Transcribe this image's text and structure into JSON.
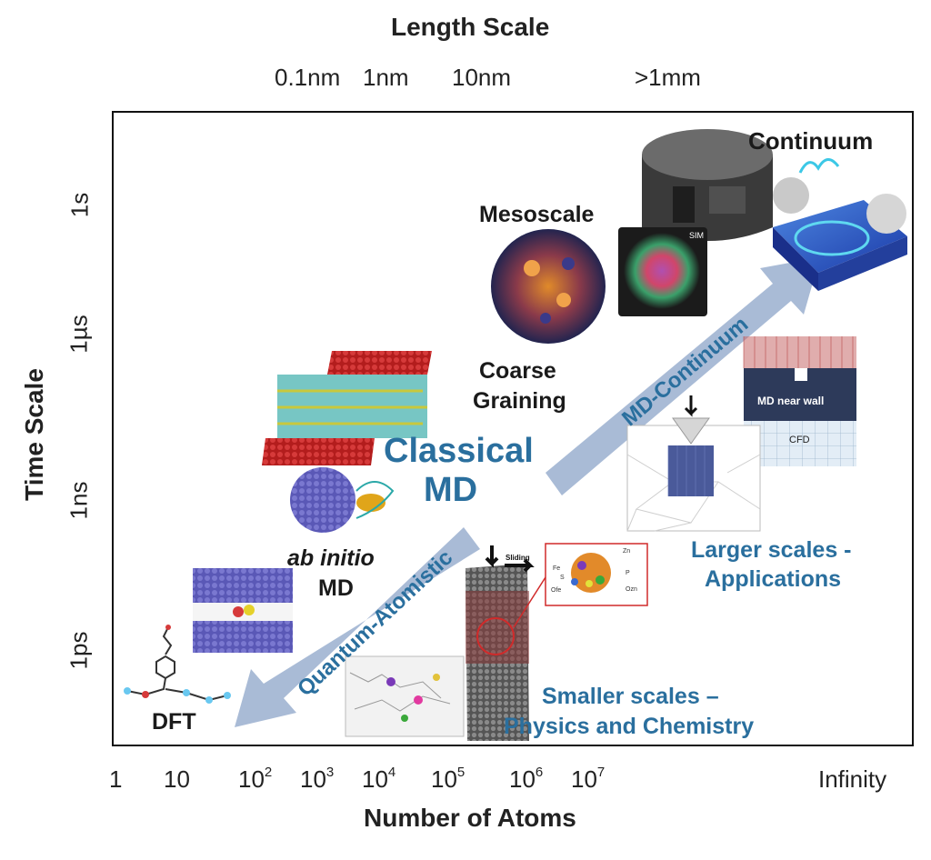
{
  "axes": {
    "top_title": "Length Scale",
    "top_ticks": [
      "0.1nm",
      "1nm",
      "10nm",
      ">1mm"
    ],
    "left_title": "Time Scale",
    "left_ticks": [
      "1s",
      "1µs",
      "1ns",
      "1ps"
    ],
    "bottom_title": "Number of Atoms",
    "bottom_ticks": [
      {
        "base": "1",
        "exp": ""
      },
      {
        "base": "10",
        "exp": ""
      },
      {
        "base": "10",
        "exp": "2"
      },
      {
        "base": "10",
        "exp": "3"
      },
      {
        "base": "10",
        "exp": "4"
      },
      {
        "base": "10",
        "exp": "5"
      },
      {
        "base": "10",
        "exp": "6"
      },
      {
        "base": "10",
        "exp": "7"
      },
      {
        "base": "Infinity",
        "exp": ""
      }
    ]
  },
  "regions": {
    "continuum": "Continuum",
    "mesoscale": "Mesoscale",
    "coarse_graining_1": "Coarse",
    "coarse_graining_2": "Graining",
    "classical_md_1": "Classical",
    "classical_md_2": "MD",
    "ab_initio_1": "ab initio",
    "ab_initio_2": "MD",
    "dft": "DFT",
    "larger_1": "Larger scales -",
    "larger_2": "Applications",
    "smaller_1": "Smaller scales –",
    "smaller_2": "Physics and Chemistry"
  },
  "arrows": {
    "up": "MD-Continuum",
    "down": "Quantum-Atomistic"
  },
  "insets": {
    "sim_tag": "SIM",
    "md_near_wall": "MD near wall",
    "cfd": "CFD",
    "sliding": "Sliding",
    "zn": "Zn",
    "fe": "Fe",
    "p": "P",
    "s": "S",
    "o_fe": "Ofe",
    "o_zn": "Ozn"
  },
  "colors": {
    "accent_blue": "#2a6f9e",
    "arrow": "#a9bbd6"
  }
}
